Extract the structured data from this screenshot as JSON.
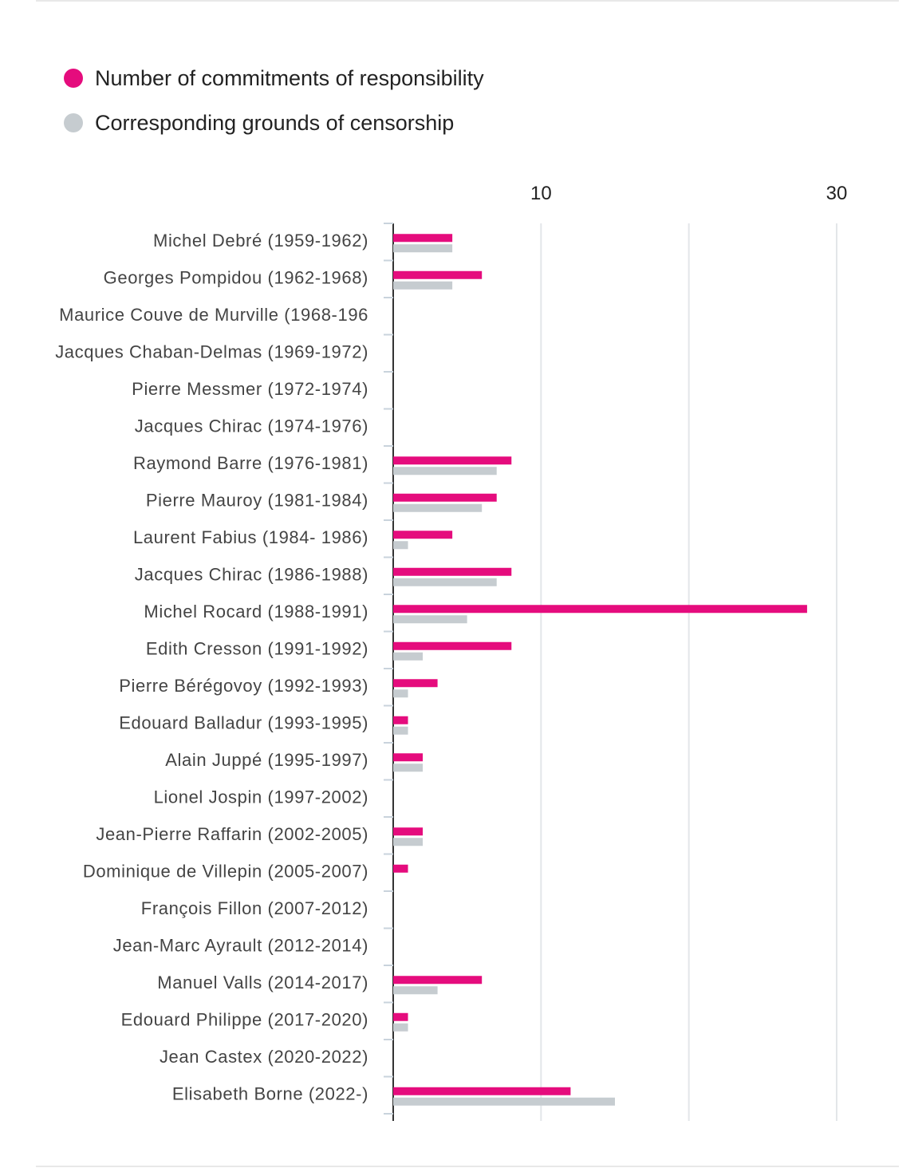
{
  "chart_data": {
    "type": "bar",
    "orientation": "horizontal",
    "x_tick_labels": [
      "10",
      "30"
    ],
    "x_ticks": [
      10,
      20,
      30
    ],
    "xlim": [
      0,
      31
    ],
    "grid": true,
    "legend_position": "top-left",
    "colors": {
      "commitments": "#e50c7d",
      "grounds": "#c6ccd0"
    },
    "series": [
      {
        "name": "Number of commitments of responsibility",
        "color": "#e50c7d",
        "values": [
          4,
          6,
          0,
          0,
          0,
          0,
          8,
          7,
          4,
          8,
          28,
          8,
          3,
          1,
          2,
          0,
          2,
          1,
          0,
          0,
          6,
          1,
          0,
          12
        ]
      },
      {
        "name": "Corresponding grounds of censorship",
        "color": "#c6ccd0",
        "values": [
          4,
          4,
          0,
          0,
          0,
          0,
          7,
          6,
          1,
          7,
          5,
          2,
          1,
          1,
          2,
          0,
          2,
          0,
          0,
          0,
          3,
          1,
          0,
          15
        ]
      }
    ],
    "categories": [
      "Michel Debré (1959-1962)",
      "Georges Pompidou (1962-1968)",
      "Maurice Couve de Murville (1968-196",
      "Jacques Chaban-Delmas (1969-1972)",
      "Pierre Messmer (1972-1974)",
      "Jacques Chirac (1974-1976)",
      "Raymond Barre (1976-1981)",
      "Pierre Mauroy (1981-1984)",
      "Laurent Fabius (1984- 1986)",
      "Jacques Chirac (1986-1988)",
      "Michel Rocard (1988-1991)",
      "Edith Cresson (1991-1992)",
      "Pierre Bérégovoy (1992-1993)",
      "Edouard Balladur (1993-1995)",
      "Alain Juppé (1995-1997)",
      "Lionel Jospin (1997-2002)",
      "Jean-Pierre Raffarin (2002-2005)",
      "Dominique de Villepin (2005-2007)",
      "François Fillon (2007-2012)",
      "Jean-Marc Ayrault (2012-2014)",
      "Manuel Valls (2014-2017)",
      "Edouard Philippe (2017-2020)",
      "Jean Castex (2020-2022)",
      "Elisabeth Borne (2022-)"
    ]
  }
}
